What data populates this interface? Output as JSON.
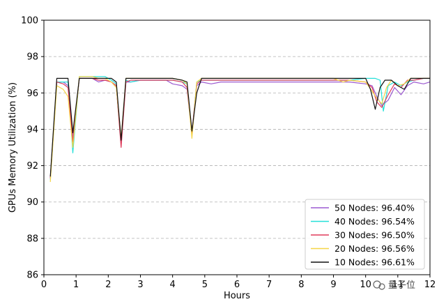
{
  "chart_data": {
    "type": "line",
    "title": "",
    "xlabel": "Hours",
    "ylabel": "GPUs Memory Utilization (%)",
    "xlim": [
      0,
      12
    ],
    "ylim": [
      86,
      100
    ],
    "xticks": [
      "0",
      "1",
      "2",
      "3",
      "4",
      "5",
      "6",
      "7",
      "8",
      "9",
      "10",
      "11",
      "12"
    ],
    "yticks": [
      "86",
      "88",
      "90",
      "92",
      "94",
      "96",
      "98",
      "100"
    ],
    "grid": "horizontal dashed",
    "legend_position": "bottom-right",
    "series": [
      {
        "name": "50 Nodes: 96.40%",
        "color": "#9b59d0",
        "x": [
          0.2,
          0.4,
          0.6,
          0.75,
          0.9,
          1.1,
          1.3,
          1.5,
          1.7,
          1.9,
          2.1,
          2.25,
          2.4,
          2.55,
          2.7,
          3.0,
          3.5,
          3.8,
          4.0,
          4.3,
          4.45,
          4.6,
          4.75,
          4.9,
          5.2,
          5.5,
          6,
          7,
          8,
          9,
          9.5,
          10.0,
          10.2,
          10.35,
          10.5,
          10.7,
          10.9,
          11.1,
          11.3,
          11.5,
          11.8,
          12.0
        ],
        "y": [
          91.3,
          96.6,
          96.6,
          96.4,
          93.5,
          96.8,
          96.8,
          96.8,
          96.6,
          96.7,
          96.6,
          96.3,
          93.3,
          96.6,
          96.6,
          96.7,
          96.7,
          96.7,
          96.5,
          96.4,
          96.2,
          93.7,
          96.4,
          96.6,
          96.5,
          96.6,
          96.6,
          96.6,
          96.6,
          96.6,
          96.6,
          96.5,
          96.4,
          95.8,
          95.3,
          95.6,
          96.3,
          95.9,
          96.4,
          96.6,
          96.5,
          96.6
        ]
      },
      {
        "name": "40 Nodes: 96.54%",
        "color": "#22e0d8",
        "x": [
          0.2,
          0.4,
          0.6,
          0.75,
          0.9,
          1.1,
          1.3,
          1.5,
          1.7,
          1.9,
          2.1,
          2.25,
          2.4,
          2.55,
          2.7,
          3.0,
          3.5,
          4.0,
          4.3,
          4.45,
          4.6,
          4.75,
          4.9,
          5.5,
          6,
          7,
          8,
          9,
          9.5,
          10.0,
          10.3,
          10.45,
          10.55,
          10.7,
          10.9,
          11.1,
          11.3,
          11.5,
          11.8,
          12.0
        ],
        "y": [
          91.2,
          96.6,
          96.6,
          96.6,
          92.7,
          96.9,
          96.9,
          96.9,
          96.9,
          96.9,
          96.7,
          96.5,
          93.2,
          96.7,
          96.6,
          96.7,
          96.7,
          96.7,
          96.6,
          96.5,
          93.7,
          96.6,
          96.7,
          96.7,
          96.7,
          96.7,
          96.7,
          96.7,
          96.7,
          96.8,
          96.8,
          96.7,
          95.0,
          96.4,
          96.6,
          96.4,
          96.6,
          96.7,
          96.8,
          96.8
        ]
      },
      {
        "name": "30 Nodes: 96.50%",
        "color": "#e03a5a",
        "x": [
          0.2,
          0.4,
          0.6,
          0.75,
          0.9,
          1.1,
          1.3,
          1.5,
          1.7,
          1.9,
          2.1,
          2.25,
          2.4,
          2.55,
          2.7,
          3.0,
          3.5,
          4.0,
          4.3,
          4.45,
          4.6,
          4.75,
          4.9,
          5.5,
          6,
          7,
          8,
          9,
          9.5,
          10.0,
          10.2,
          10.35,
          10.5,
          10.7,
          10.9,
          11.1,
          11.3,
          11.5,
          11.8,
          12.0
        ],
        "y": [
          91.3,
          96.6,
          96.5,
          96.3,
          93.3,
          96.8,
          96.8,
          96.8,
          96.7,
          96.7,
          96.6,
          96.4,
          93.0,
          96.6,
          96.7,
          96.7,
          96.7,
          96.7,
          96.6,
          96.3,
          93.8,
          96.5,
          96.7,
          96.7,
          96.7,
          96.7,
          96.7,
          96.7,
          96.7,
          96.6,
          96.3,
          95.5,
          95.2,
          95.9,
          96.5,
          96.3,
          96.7,
          96.7,
          96.8,
          96.8
        ]
      },
      {
        "name": "20 Nodes: 96.56%",
        "color": "#f5d547",
        "x": [
          0.2,
          0.4,
          0.6,
          0.75,
          0.9,
          1.1,
          1.3,
          1.5,
          1.7,
          1.9,
          2.1,
          2.25,
          2.4,
          2.55,
          2.7,
          3.0,
          3.5,
          4.0,
          4.3,
          4.45,
          4.6,
          4.75,
          4.9,
          5.5,
          6,
          7,
          8,
          9,
          9.3,
          9.5,
          10.0,
          10.2,
          10.35,
          10.5,
          10.65,
          10.8,
          11.0,
          11.2,
          11.4,
          11.6,
          11.8,
          12.0
        ],
        "y": [
          91.1,
          96.4,
          96.2,
          95.8,
          93.0,
          96.9,
          96.9,
          96.9,
          96.8,
          96.8,
          96.6,
          96.3,
          93.5,
          96.8,
          96.8,
          96.8,
          96.8,
          96.8,
          96.7,
          96.5,
          93.5,
          96.6,
          96.8,
          96.8,
          96.8,
          96.8,
          96.8,
          96.8,
          96.6,
          96.7,
          96.6,
          96.1,
          95.7,
          95.4,
          96.3,
          96.7,
          96.4,
          96.5,
          96.8,
          96.8,
          96.8,
          96.8
        ]
      },
      {
        "name": "10 Nodes: 96.61%",
        "color": "#111111",
        "x": [
          0.2,
          0.4,
          0.6,
          0.75,
          0.9,
          1.1,
          1.3,
          1.5,
          1.7,
          1.9,
          2.1,
          2.25,
          2.4,
          2.55,
          2.7,
          3.0,
          3.5,
          4.0,
          4.3,
          4.45,
          4.6,
          4.75,
          4.9,
          5.5,
          6,
          7,
          8,
          9,
          9.5,
          10.0,
          10.15,
          10.3,
          10.45,
          10.6,
          10.8,
          11.0,
          11.2,
          11.4,
          11.6,
          11.8,
          12.0
        ],
        "y": [
          91.4,
          96.8,
          96.8,
          96.8,
          93.8,
          96.8,
          96.8,
          96.8,
          96.8,
          96.8,
          96.8,
          96.6,
          93.4,
          96.8,
          96.8,
          96.8,
          96.8,
          96.8,
          96.7,
          96.6,
          93.9,
          96.0,
          96.8,
          96.8,
          96.8,
          96.8,
          96.8,
          96.8,
          96.8,
          96.8,
          96.2,
          95.1,
          96.3,
          96.7,
          96.7,
          96.4,
          96.2,
          96.8,
          96.8,
          96.8,
          96.8
        ]
      }
    ]
  },
  "watermark": {
    "text": "量子位"
  }
}
